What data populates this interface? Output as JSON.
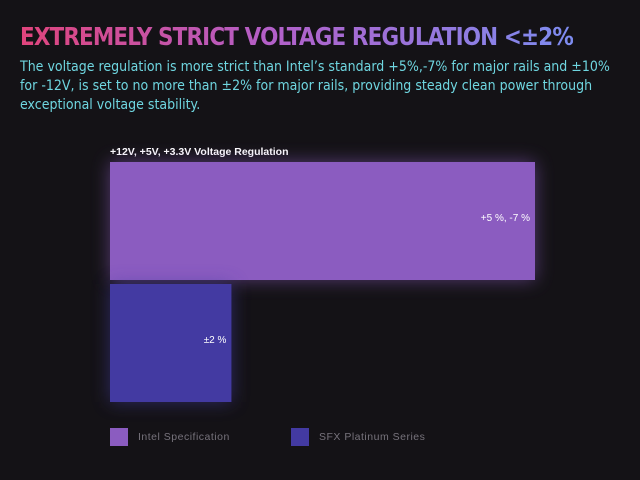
{
  "header": {
    "title": "EXTREMELY STRICT VOLTAGE REGULATION <±2%",
    "description": "The voltage regulation is more strict than Intel’s standard +5%,-7% for major rails and ±10% for -12V, is set to no more than ±2% for major rails, providing steady clean power through exceptional voltage stability."
  },
  "chart_data": {
    "type": "bar",
    "orientation": "horizontal",
    "title": "+12V, +5V, +3.3V Voltage Regulation",
    "xlabel": "",
    "ylabel": "",
    "grid": false,
    "legend_position": "bottom",
    "series": [
      {
        "name": "Intel Specification",
        "value": 7,
        "label": "+5 %, -7 %",
        "color": "#8b5cc0"
      },
      {
        "name": "SFX Platinum Series",
        "value": 2,
        "label": "±2 %",
        "color": "#433aa2"
      }
    ]
  }
}
